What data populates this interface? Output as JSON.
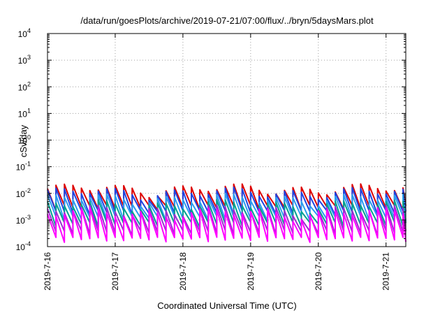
{
  "chart_data": {
    "type": "line",
    "title": "/data/run/goesPlots/archive/2019-07-21/07:00/flux/../bryn/5daysMars.plot",
    "xlabel": "Coordinated Universal Time (UTC)",
    "ylabel": "cSv/day",
    "y_scale": "log",
    "ylim": [
      0.0001,
      10000
    ],
    "xlim": [
      "2019-07-16T00:00",
      "2019-07-21T07:00"
    ],
    "x_tick_labels": [
      "2019-7-16",
      "2019-7-17",
      "2019-7-18",
      "2019-7-19",
      "2019-7-20",
      "2019-7-21"
    ],
    "x_tick_dates": [
      "2019-07-16T00:00",
      "2019-07-17T00:00",
      "2019-07-18T00:00",
      "2019-07-19T00:00",
      "2019-07-20T00:00",
      "2019-07-21T00:00"
    ],
    "y_tick_labels": [
      {
        "base": "10",
        "exp": "-4"
      },
      {
        "base": "10",
        "exp": "-3"
      },
      {
        "base": "10",
        "exp": "-2"
      },
      {
        "base": "10",
        "exp": "-1"
      },
      {
        "base": "10",
        "exp": "0"
      },
      {
        "base": "10",
        "exp": "1"
      },
      {
        "base": "10",
        "exp": "2"
      },
      {
        "base": "10",
        "exp": "3"
      },
      {
        "base": "10",
        "exp": "4"
      }
    ],
    "grid": true,
    "pattern": "sawtooth, repeating approximately every 3 hours",
    "cycle_hours": 3,
    "series": [
      {
        "color": "#dd0000",
        "peak": 0.015,
        "trough": 0.0028
      },
      {
        "color": "#1e44e0",
        "peak": 0.011,
        "trough": 0.0018
      },
      {
        "color": "#2a9cf0",
        "peak": 0.0065,
        "trough": 0.0011
      },
      {
        "color": "#00a090",
        "peak": 0.0038,
        "trough": 0.00065
      },
      {
        "color": "#9a2fd0",
        "peak": 0.0024,
        "trough": 0.00032
      },
      {
        "color": "#ff00ff",
        "peak": 0.0019,
        "trough": 0.00018
      }
    ]
  }
}
